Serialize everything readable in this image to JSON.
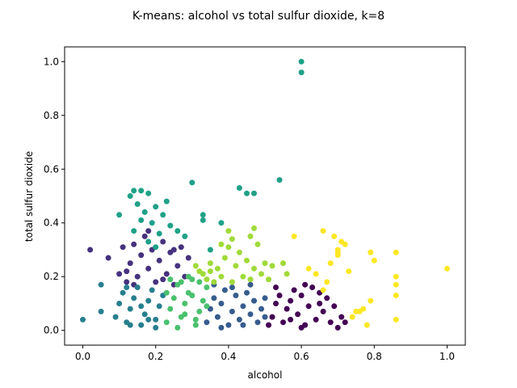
{
  "chart_data": {
    "type": "scatter",
    "title": "K-means: alcohol vs total sulfur dioxide, k=8",
    "xlabel": "alcohol",
    "ylabel": "total sulfur dioxide",
    "xlim": [
      -0.05,
      1.05
    ],
    "ylim": [
      -0.055,
      1.055
    ],
    "xticks": [
      0.0,
      0.2,
      0.4,
      0.6,
      0.8,
      1.0
    ],
    "yticks": [
      0.0,
      0.2,
      0.4,
      0.6,
      0.8,
      1.0
    ],
    "tick_labels_x": [
      "0.0",
      "0.2",
      "0.4",
      "0.6",
      "0.8",
      "1.0"
    ],
    "tick_labels_y": [
      "0.0",
      "0.2",
      "0.4",
      "0.6",
      "0.8",
      "1.0"
    ],
    "grid": false,
    "k": 8,
    "series": [
      {
        "color": "#440154",
        "points": [
          [
            0.51,
            0.02
          ],
          [
            0.52,
            0.05
          ],
          [
            0.53,
            0.1
          ],
          [
            0.54,
            0.13
          ],
          [
            0.55,
            0.03
          ],
          [
            0.56,
            0.08
          ],
          [
            0.57,
            0.11
          ],
          [
            0.58,
            0.15
          ],
          [
            0.59,
            0.06
          ],
          [
            0.6,
            0.13
          ],
          [
            0.61,
            0.02
          ],
          [
            0.62,
            0.09
          ],
          [
            0.63,
            0.16
          ],
          [
            0.64,
            0.04
          ],
          [
            0.65,
            0.1
          ],
          [
            0.66,
            0.07
          ],
          [
            0.67,
            0.12
          ],
          [
            0.68,
            0.03
          ],
          [
            0.69,
            0.09
          ],
          [
            0.7,
            0.01
          ],
          [
            0.71,
            0.05
          ],
          [
            0.72,
            0.03
          ],
          [
            0.53,
            0.16
          ],
          [
            0.57,
            0.04
          ],
          [
            0.61,
            0.17
          ],
          [
            0.65,
            0.14
          ],
          [
            0.6,
            0.01
          ]
        ]
      },
      {
        "color": "#46327e",
        "points": [
          [
            0.02,
            0.3
          ],
          [
            0.07,
            0.27
          ],
          [
            0.1,
            0.21
          ],
          [
            0.11,
            0.31
          ],
          [
            0.12,
            0.18
          ],
          [
            0.13,
            0.25
          ],
          [
            0.14,
            0.32
          ],
          [
            0.15,
            0.2
          ],
          [
            0.16,
            0.28
          ],
          [
            0.17,
            0.35
          ],
          [
            0.18,
            0.23
          ],
          [
            0.19,
            0.3
          ],
          [
            0.2,
            0.18
          ],
          [
            0.21,
            0.26
          ],
          [
            0.22,
            0.33
          ],
          [
            0.23,
            0.21
          ],
          [
            0.24,
            0.29
          ],
          [
            0.25,
            0.17
          ],
          [
            0.26,
            0.24
          ],
          [
            0.27,
            0.31
          ],
          [
            0.28,
            0.2
          ],
          [
            0.29,
            0.27
          ],
          [
            0.14,
            0.17
          ],
          [
            0.18,
            0.37
          ],
          [
            0.22,
            0.19
          ],
          [
            0.12,
            0.22
          ],
          [
            0.25,
            0.3
          ]
        ]
      },
      {
        "color": "#365c8d",
        "points": [
          [
            0.34,
            0.03
          ],
          [
            0.35,
            0.08
          ],
          [
            0.36,
            0.12
          ],
          [
            0.37,
            0.05
          ],
          [
            0.38,
            0.1
          ],
          [
            0.39,
            0.15
          ],
          [
            0.4,
            0.02
          ],
          [
            0.41,
            0.07
          ],
          [
            0.42,
            0.13
          ],
          [
            0.43,
            0.04
          ],
          [
            0.44,
            0.09
          ],
          [
            0.45,
            0.14
          ],
          [
            0.46,
            0.06
          ],
          [
            0.47,
            0.11
          ],
          [
            0.48,
            0.03
          ],
          [
            0.49,
            0.08
          ],
          [
            0.5,
            0.12
          ],
          [
            0.36,
            0.17
          ],
          [
            0.41,
            0.16
          ],
          [
            0.46,
            0.17
          ],
          [
            0.38,
            0.01
          ],
          [
            0.44,
            0.02
          ],
          [
            0.5,
            0.05
          ]
        ]
      },
      {
        "color": "#277f8e",
        "points": [
          [
            0.0,
            0.04
          ],
          [
            0.05,
            0.07
          ],
          [
            0.05,
            0.17
          ],
          [
            0.09,
            0.05
          ],
          [
            0.1,
            0.1
          ],
          [
            0.11,
            0.14
          ],
          [
            0.12,
            0.03
          ],
          [
            0.13,
            0.08
          ],
          [
            0.14,
            0.12
          ],
          [
            0.15,
            0.16
          ],
          [
            0.16,
            0.02
          ],
          [
            0.17,
            0.06
          ],
          [
            0.18,
            0.11
          ],
          [
            0.19,
            0.15
          ],
          [
            0.2,
            0.04
          ],
          [
            0.21,
            0.09
          ],
          [
            0.22,
            0.13
          ],
          [
            0.12,
            0.16
          ],
          [
            0.16,
            0.09
          ],
          [
            0.2,
            0.01
          ],
          [
            0.13,
            0.02
          ],
          [
            0.18,
            0.04
          ]
        ]
      },
      {
        "color": "#1fa187",
        "points": [
          [
            0.6,
            1.0
          ],
          [
            0.6,
            0.96
          ],
          [
            0.54,
            0.56
          ],
          [
            0.43,
            0.53
          ],
          [
            0.45,
            0.51
          ],
          [
            0.3,
            0.55
          ],
          [
            0.47,
            0.51
          ],
          [
            0.38,
            0.4
          ],
          [
            0.13,
            0.5
          ],
          [
            0.14,
            0.52
          ],
          [
            0.15,
            0.47
          ],
          [
            0.16,
            0.52
          ],
          [
            0.17,
            0.44
          ],
          [
            0.18,
            0.51
          ],
          [
            0.19,
            0.4
          ],
          [
            0.2,
            0.46
          ],
          [
            0.21,
            0.36
          ],
          [
            0.22,
            0.43
          ],
          [
            0.23,
            0.48
          ],
          [
            0.24,
            0.39
          ],
          [
            0.1,
            0.43
          ],
          [
            0.26,
            0.37
          ],
          [
            0.28,
            0.35
          ],
          [
            0.33,
            0.43
          ],
          [
            0.33,
            0.41
          ],
          [
            0.35,
            0.3
          ],
          [
            0.14,
            0.37
          ],
          [
            0.16,
            0.41
          ],
          [
            0.18,
            0.33
          ],
          [
            0.2,
            0.31
          ]
        ]
      },
      {
        "color": "#4ac16d",
        "points": [
          [
            0.23,
            0.03
          ],
          [
            0.24,
            0.08
          ],
          [
            0.25,
            0.12
          ],
          [
            0.26,
            0.17
          ],
          [
            0.27,
            0.05
          ],
          [
            0.28,
            0.1
          ],
          [
            0.29,
            0.14
          ],
          [
            0.3,
            0.19
          ],
          [
            0.31,
            0.02
          ],
          [
            0.32,
            0.07
          ],
          [
            0.33,
            0.11
          ],
          [
            0.34,
            0.16
          ],
          [
            0.24,
            0.19
          ],
          [
            0.26,
            0.01
          ],
          [
            0.28,
            0.06
          ],
          [
            0.3,
            0.13
          ],
          [
            0.32,
            0.18
          ],
          [
            0.34,
            0.09
          ],
          [
            0.23,
            0.14
          ],
          [
            0.27,
            0.18
          ],
          [
            0.31,
            0.04
          ],
          [
            0.29,
            0.2
          ]
        ]
      },
      {
        "color": "#a0da39",
        "points": [
          [
            0.31,
            0.24
          ],
          [
            0.32,
            0.22
          ],
          [
            0.33,
            0.21
          ],
          [
            0.34,
            0.19
          ],
          [
            0.35,
            0.25
          ],
          [
            0.36,
            0.18
          ],
          [
            0.37,
            0.23
          ],
          [
            0.38,
            0.2
          ],
          [
            0.39,
            0.27
          ],
          [
            0.4,
            0.31
          ],
          [
            0.41,
            0.18
          ],
          [
            0.42,
            0.24
          ],
          [
            0.43,
            0.29
          ],
          [
            0.44,
            0.2
          ],
          [
            0.45,
            0.26
          ],
          [
            0.46,
            0.19
          ],
          [
            0.47,
            0.23
          ],
          [
            0.48,
            0.32
          ],
          [
            0.49,
            0.21
          ],
          [
            0.5,
            0.25
          ],
          [
            0.51,
            0.19
          ],
          [
            0.52,
            0.24
          ],
          [
            0.55,
            0.25
          ],
          [
            0.56,
            0.21
          ],
          [
            0.41,
            0.34
          ],
          [
            0.46,
            0.35
          ],
          [
            0.47,
            0.38
          ],
          [
            0.4,
            0.37
          ],
          [
            0.38,
            0.32
          ],
          [
            0.35,
            0.22
          ]
        ]
      },
      {
        "color": "#fde725",
        "points": [
          [
            0.58,
            0.35
          ],
          [
            0.62,
            0.23
          ],
          [
            0.64,
            0.21
          ],
          [
            0.66,
            0.37
          ],
          [
            0.67,
            0.18
          ],
          [
            0.68,
            0.25
          ],
          [
            0.69,
            0.35
          ],
          [
            0.7,
            0.3
          ],
          [
            0.7,
            0.28
          ],
          [
            0.71,
            0.33
          ],
          [
            0.72,
            0.32
          ],
          [
            0.73,
            0.22
          ],
          [
            0.74,
            0.05
          ],
          [
            0.75,
            0.07
          ],
          [
            0.76,
            0.07
          ],
          [
            0.77,
            0.08
          ],
          [
            0.78,
            0.02
          ],
          [
            0.79,
            0.11
          ],
          [
            0.79,
            0.29
          ],
          [
            0.8,
            0.26
          ],
          [
            0.86,
            0.29
          ],
          [
            0.86,
            0.2
          ],
          [
            0.86,
            0.17
          ],
          [
            0.86,
            0.13
          ],
          [
            0.86,
            0.04
          ],
          [
            1.0,
            0.23
          ],
          [
            0.7,
            0.29
          ],
          [
            0.66,
            0.15
          ]
        ]
      }
    ]
  }
}
